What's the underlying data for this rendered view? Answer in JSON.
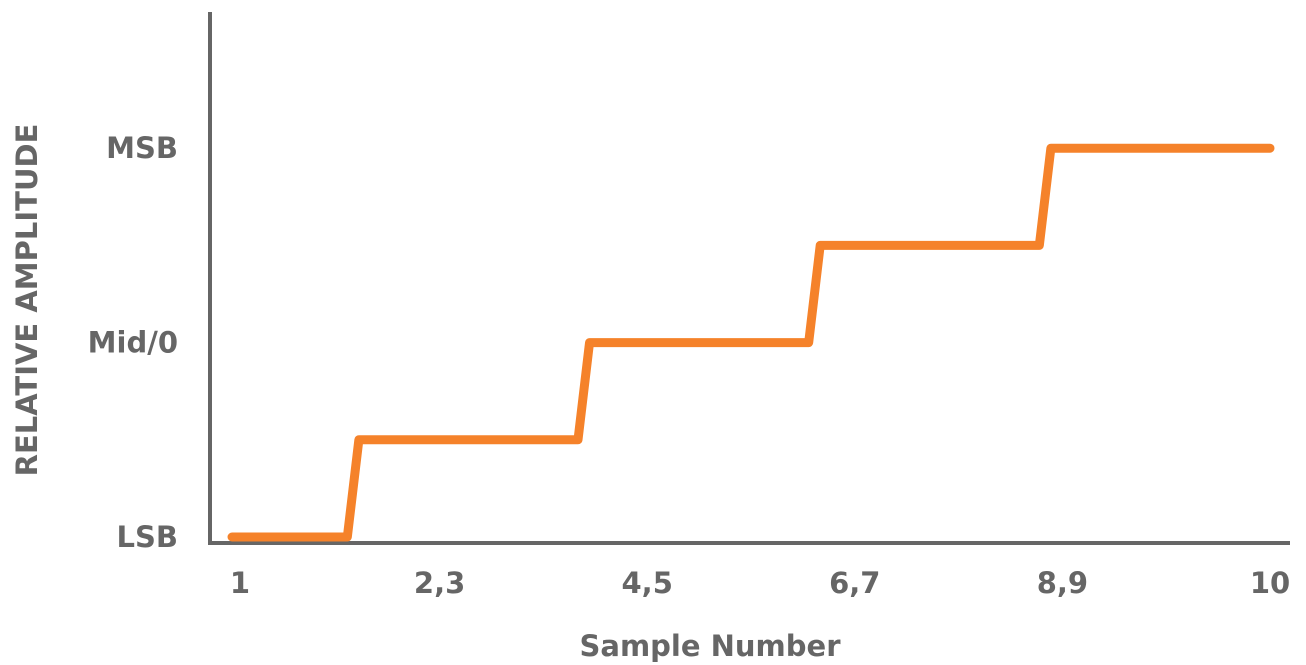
{
  "chart_data": {
    "type": "line",
    "xlabel": "Sample Number",
    "ylabel": "RELATIVE AMPLITUDE",
    "x_tick_labels": [
      "1",
      "2,3",
      "4,5",
      "6,7",
      "8,9",
      "10"
    ],
    "y_tick_labels": [
      "LSB",
      "Mid/0",
      "MSB"
    ],
    "y_tick_values": [
      0,
      2,
      4
    ],
    "ylim": [
      0,
      5
    ],
    "grid": false,
    "legend": "none",
    "series": [
      {
        "color": "#f5822a",
        "step_levels": [
          0,
          1,
          2,
          3,
          4
        ],
        "points": [
          {
            "x": 1,
            "y": 0
          },
          {
            "x": 2,
            "y": 0
          },
          {
            "x": 2.1,
            "y": 1
          },
          {
            "x": 4,
            "y": 1
          },
          {
            "x": 4.1,
            "y": 2
          },
          {
            "x": 6,
            "y": 2
          },
          {
            "x": 6.1,
            "y": 3
          },
          {
            "x": 8,
            "y": 3
          },
          {
            "x": 8.1,
            "y": 4
          },
          {
            "x": 10,
            "y": 4
          }
        ]
      }
    ]
  }
}
